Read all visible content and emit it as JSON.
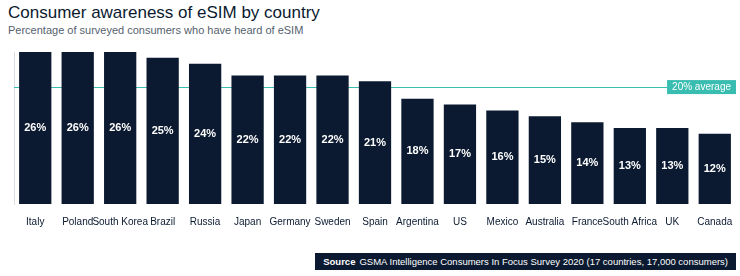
{
  "chart_data": {
    "type": "bar",
    "title": "Consumer awareness of eSIM by country",
    "subtitle": "Percentage of surveyed consumers who have heard of eSIM",
    "categories": [
      "Italy",
      "Poland",
      "South Korea",
      "Brazil",
      "Russia",
      "Japan",
      "Germany",
      "Sweden",
      "Spain",
      "Argentina",
      "US",
      "Mexico",
      "Australia",
      "France",
      "South Africa",
      "UK",
      "Canada"
    ],
    "values": [
      26,
      26,
      26,
      25,
      24,
      22,
      22,
      22,
      21,
      18,
      17,
      16,
      15,
      14,
      13,
      13,
      12
    ],
    "value_labels": [
      "26%",
      "26%",
      "26%",
      "25%",
      "24%",
      "22%",
      "22%",
      "22%",
      "21%",
      "18%",
      "17%",
      "16%",
      "15%",
      "14%",
      "13%",
      "13%",
      "12%"
    ],
    "color": "#0b1a30",
    "ylim": [
      0,
      26
    ],
    "grid": false,
    "tick_labels": "x",
    "data_labels": true,
    "annotations": [
      {
        "type": "hline",
        "value": 20,
        "label": "20% average",
        "color": "#39bdb0"
      }
    ],
    "source": {
      "label": "Source",
      "text": "GSMA Intelligence Consumers In Focus Survey 2020 (17 countries, 17,000 consumers)"
    }
  }
}
